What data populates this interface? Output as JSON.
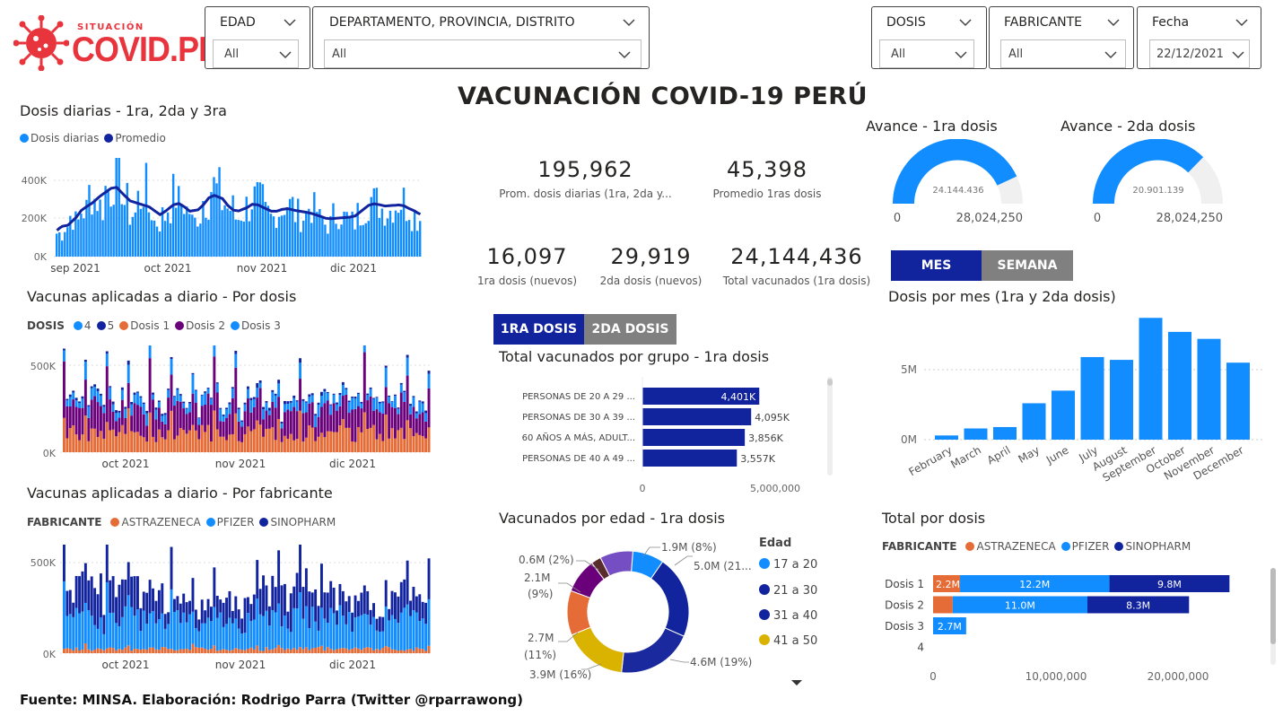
{
  "brand": {
    "small": "SITUACIÓN",
    "big": "COVID.PE"
  },
  "filters": {
    "edad": {
      "label": "EDAD",
      "value": "All"
    },
    "ubicacion": {
      "label": "DEPARTAMENTO, PROVINCIA, DISTRITO",
      "value": "All"
    },
    "dosis": {
      "label": "DOSIS",
      "value": "All"
    },
    "fabricante": {
      "label": "FABRICANTE",
      "value": "All"
    },
    "fecha": {
      "label": "Fecha",
      "value": "22/12/2021"
    }
  },
  "title": "VACUNACIÓN COVID-19 PERÚ",
  "daily": {
    "title": "Dosis diarias - 1ra, 2da y 3ra",
    "legend": [
      "Dosis diarias",
      "Promedio"
    ],
    "yticks": [
      "400K",
      "200K",
      "0K"
    ],
    "xticks": [
      "sep 2021",
      "oct 2021",
      "nov 2021",
      "dic 2021"
    ]
  },
  "bydose": {
    "title": "Vacunas aplicadas a diario - Por dosis",
    "legend_title": "DOSIS",
    "legend": [
      "4",
      "5",
      "Dosis 1",
      "Dosis 2",
      "Dosis 3"
    ],
    "yticks": [
      "500K",
      "0K"
    ],
    "xticks": [
      "oct 2021",
      "nov 2021",
      "dic 2021"
    ]
  },
  "bymaker": {
    "title": "Vacunas aplicadas a diario - Por fabricante",
    "legend_title": "FABRICANTE",
    "legend": [
      "ASTRAZENECA",
      "PFIZER",
      "SINOPHARM"
    ],
    "yticks": [
      "500K",
      "0K"
    ],
    "xticks": [
      "oct 2021",
      "nov 2021",
      "dic 2021"
    ]
  },
  "kpis": {
    "prom": {
      "value": "195,962",
      "label": "Prom. dosis diarias (1ra, 2da y..."
    },
    "prom1": {
      "value": "45,398",
      "label": "Promedio 1ras dosis"
    },
    "d1": {
      "value": "16,097",
      "label": "1ra dosis (nuevos)"
    },
    "d2": {
      "value": "29,919",
      "label": "2da dosis (nuevos)"
    },
    "total": {
      "value": "24,144,436",
      "label": "Total vacunados (1ra dosis)"
    }
  },
  "toggles": {
    "dose": {
      "first": "1RA DOSIS",
      "second": "2DA DOSIS"
    },
    "period": {
      "mes": "MES",
      "semana": "SEMANA"
    }
  },
  "group": {
    "title": "Total vacunados por grupo - 1ra dosis",
    "xticks": [
      "0",
      "5,000,000"
    ]
  },
  "age": {
    "title": "Vacunados por edad - 1ra dosis",
    "legend_title": "Edad",
    "legend": [
      "17 a 20",
      "21 a 30",
      "31 a 40",
      "41 a 50"
    ],
    "labels": [
      "1.9M (8%)",
      "5.0M (21...",
      "4.6M (19%)",
      "3.9M (16%)",
      "2.7M",
      "(11%)",
      "2.1M",
      "(9%)",
      "0.6M (2%)"
    ]
  },
  "gauges": {
    "g1": {
      "title": "Avance - 1ra dosis",
      "value": "24.144.436",
      "min": "0",
      "max": "28,024,250"
    },
    "g2": {
      "title": "Avance - 2da dosis",
      "value": "20.901.139",
      "min": "0",
      "max": "28,024,250"
    }
  },
  "monthly": {
    "title": "Dosis por mes (1ra y 2da dosis)",
    "yticks": [
      "5M",
      "0M"
    ]
  },
  "totaldose": {
    "title": "Total por dosis",
    "legend_title": "FABRICANTE",
    "legend": [
      "ASTRAZENECA",
      "PFIZER",
      "SINOPHARM"
    ],
    "xticks": [
      "0",
      "10,000,000",
      "20,000,000"
    ]
  },
  "colors": {
    "light_blue": "#118dff",
    "dark_blue": "#12239e",
    "orange": "#e66c37",
    "purple": "#6b007b",
    "magenta": "#e044a7",
    "yellow": "#d9b300",
    "brown": "#744ec2",
    "gray": "#808080",
    "gauge_bg": "#f0f0f0"
  },
  "chart_data": [
    {
      "type": "bar",
      "title": "Dosis diarias - 1ra, 2da y 3ra",
      "series": [
        {
          "name": "Dosis diarias"
        },
        {
          "name": "Promedio"
        }
      ],
      "x": [
        "sep 2021",
        "oct 2021",
        "nov 2021",
        "dic 2021"
      ],
      "ylim": [
        0,
        500000
      ],
      "yticks": [
        0,
        200000,
        400000
      ],
      "note_values": [
        120000,
        160000,
        210000,
        180000,
        240000,
        330000,
        300000,
        260000,
        350000,
        420000,
        390000,
        280000,
        220000,
        300000,
        350000,
        240000,
        180000,
        210000,
        260000,
        320000,
        280000,
        240000,
        180000,
        220000,
        300000,
        360000,
        340000,
        280000,
        250000,
        200000,
        230000,
        260000,
        300000,
        280000,
        220000,
        200000,
        240000,
        280000,
        260000,
        220000,
        210000,
        260000,
        240000,
        190000,
        170000,
        210000,
        230000,
        200000,
        180000,
        220000,
        260000,
        300000,
        280000,
        250000,
        240000,
        270000,
        290000,
        260000,
        220000,
        200000
      ]
    },
    {
      "type": "bar",
      "title": "Dosis por mes (1ra y 2da dosis)",
      "categories": [
        "February",
        "March",
        "April",
        "May",
        "June",
        "July",
        "August",
        "September",
        "October",
        "November",
        "December"
      ],
      "values": [
        300000,
        800000,
        900000,
        2600000,
        3500000,
        5900000,
        5700000,
        8700000,
        7700000,
        7200000,
        5500000
      ],
      "ylim": [
        0,
        9000000
      ]
    },
    {
      "type": "bar",
      "title": "Total vacunados por grupo - 1ra dosis",
      "categories": [
        "PERSONAS DE 20 A 29 ...",
        "PERSONAS DE 30 A 39 ...",
        "60 AÑOS A MÁS, ADULT...",
        "PERSONAS DE 40 A 49 ..."
      ],
      "values": [
        4401000,
        4095000,
        3856000,
        3557000
      ],
      "data_labels": [
        "4,401K",
        "4,095K",
        "3,856K",
        "3,557K"
      ],
      "xlim": [
        0,
        5000000
      ]
    },
    {
      "type": "pie",
      "title": "Vacunados por edad - 1ra dosis",
      "values": [
        1.9,
        5.0,
        4.6,
        3.9,
        2.7,
        2.1,
        0.6,
        2.0
      ],
      "percentages": [
        8,
        21,
        19,
        16,
        11,
        9,
        2,
        8
      ]
    },
    {
      "type": "bar",
      "title": "Total por dosis",
      "categories": [
        "Dosis 1",
        "Dosis 2",
        "Dosis 3",
        "4"
      ],
      "series": [
        {
          "name": "ASTRAZENECA",
          "values": [
            2.2,
            1.6,
            0,
            0
          ]
        },
        {
          "name": "PFIZER",
          "values": [
            12.2,
            11.0,
            2.7,
            0
          ]
        },
        {
          "name": "SINOPHARM",
          "values": [
            9.8,
            8.3,
            0,
            0
          ]
        }
      ],
      "data_labels": {
        "Dosis 1": [
          "2.2M",
          "12.2M",
          "9.8M"
        ],
        "Dosis 2": [
          "",
          "11.0M",
          "8.3M"
        ],
        "Dosis 3": [
          "",
          "2.7M",
          ""
        ]
      },
      "xlim": [
        0,
        25000000
      ]
    }
  ],
  "footer": "Fuente: MINSA. Elaboración: Rodrigo Parra (Twitter @rparrawong)"
}
